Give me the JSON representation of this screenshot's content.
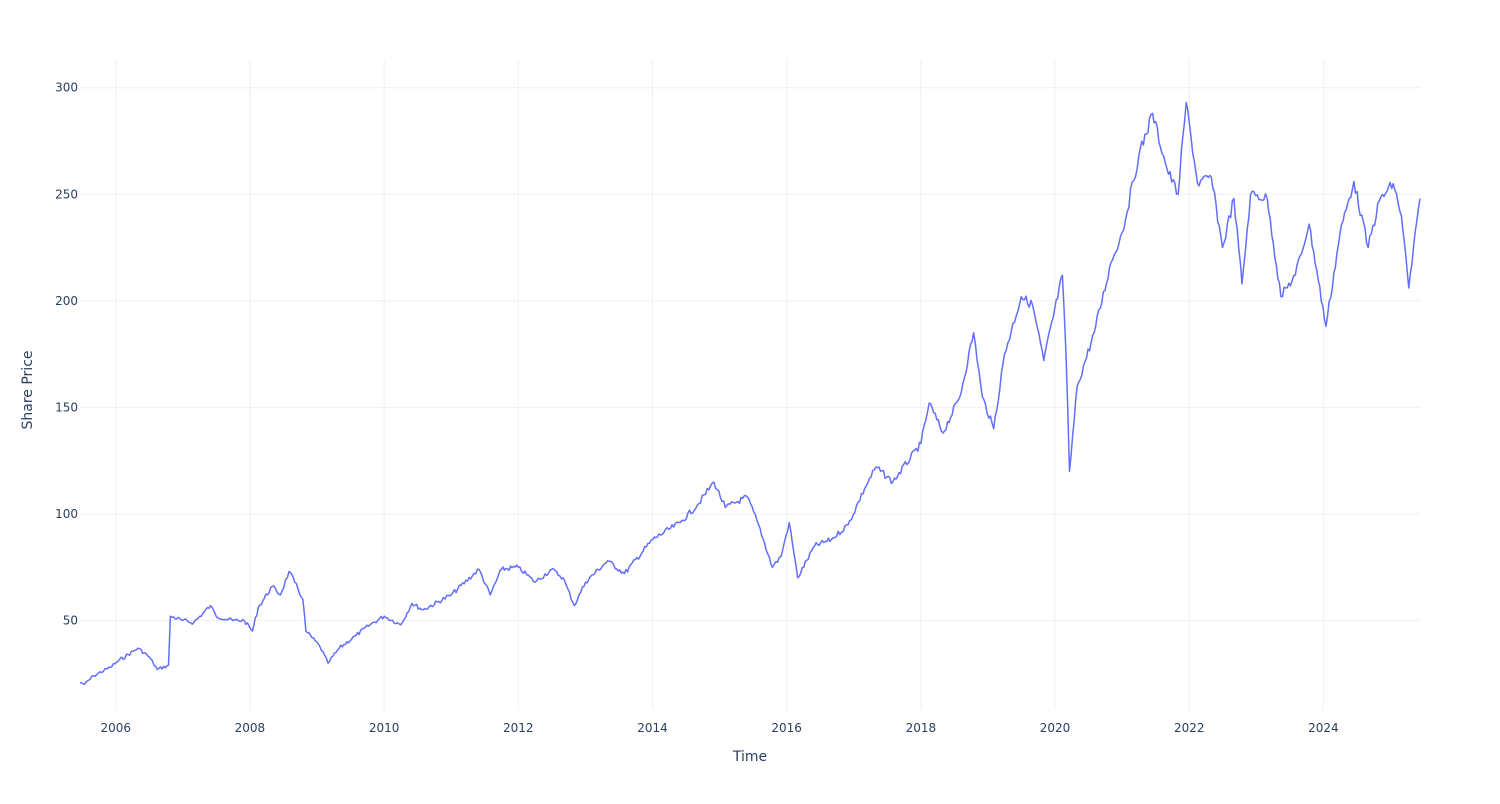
{
  "chart_data": {
    "type": "line",
    "title": "",
    "xlabel": "Time",
    "ylabel": "Share Price",
    "x_ticks": [
      "2006",
      "2008",
      "2010",
      "2012",
      "2014",
      "2016",
      "2018",
      "2020",
      "2022",
      "2024"
    ],
    "y_ticks": [
      50,
      100,
      150,
      200,
      250,
      300
    ],
    "xlim": [
      "2005-06-20",
      "2025-06-10"
    ],
    "ylim": [
      8,
      313
    ],
    "grid": true,
    "line_color": "#636efa",
    "series": [
      {
        "points": [
          [
            "2005-06-20",
            21
          ],
          [
            "2005-07-15",
            20
          ],
          [
            "2005-09-01",
            24
          ],
          [
            "2005-12-01",
            28
          ],
          [
            "2006-01-15",
            31
          ],
          [
            "2006-05-01",
            37
          ],
          [
            "2006-07-01",
            33
          ],
          [
            "2006-08-15",
            27
          ],
          [
            "2006-10-15",
            29
          ],
          [
            "2006-10-25",
            52
          ],
          [
            "2007-01-01",
            50
          ],
          [
            "2007-03-01",
            49
          ],
          [
            "2007-06-01",
            57
          ],
          [
            "2007-07-01",
            52
          ],
          [
            "2007-10-01",
            50
          ],
          [
            "2007-12-01",
            50
          ],
          [
            "2008-01-15",
            45
          ],
          [
            "2008-02-15",
            56
          ],
          [
            "2008-05-01",
            66
          ],
          [
            "2008-06-15",
            62
          ],
          [
            "2008-08-01",
            73
          ],
          [
            "2008-09-01",
            68
          ],
          [
            "2008-10-15",
            60
          ],
          [
            "2008-11-01",
            45
          ],
          [
            "2009-01-15",
            38
          ],
          [
            "2009-03-01",
            30
          ],
          [
            "2009-05-01",
            37
          ],
          [
            "2009-08-01",
            43
          ],
          [
            "2009-10-15",
            48
          ],
          [
            "2010-01-01",
            52
          ],
          [
            "2010-04-01",
            48
          ],
          [
            "2010-06-01",
            58
          ],
          [
            "2010-08-01",
            55
          ],
          [
            "2011-01-01",
            62
          ],
          [
            "2011-06-01",
            74
          ],
          [
            "2011-08-01",
            62
          ],
          [
            "2011-10-01",
            74
          ],
          [
            "2012-01-01",
            75
          ],
          [
            "2012-04-01",
            68
          ],
          [
            "2012-07-01",
            74
          ],
          [
            "2012-09-01",
            70
          ],
          [
            "2012-11-01",
            57
          ],
          [
            "2013-01-01",
            68
          ],
          [
            "2013-05-01",
            78
          ],
          [
            "2013-08-01",
            72
          ],
          [
            "2014-01-01",
            88
          ],
          [
            "2014-06-01",
            96
          ],
          [
            "2014-09-01",
            104
          ],
          [
            "2014-12-01",
            115
          ],
          [
            "2015-02-01",
            103
          ],
          [
            "2015-06-01",
            108
          ],
          [
            "2015-08-01",
            95
          ],
          [
            "2015-10-15",
            75
          ],
          [
            "2015-12-01",
            80
          ],
          [
            "2016-01-15",
            96
          ],
          [
            "2016-03-01",
            70
          ],
          [
            "2016-06-01",
            85
          ],
          [
            "2016-09-01",
            88
          ],
          [
            "2016-12-01",
            95
          ],
          [
            "2017-03-01",
            112
          ],
          [
            "2017-05-01",
            122
          ],
          [
            "2017-08-01",
            115
          ],
          [
            "2018-01-01",
            133
          ],
          [
            "2018-02-15",
            152
          ],
          [
            "2018-05-01",
            138
          ],
          [
            "2018-08-01",
            155
          ],
          [
            "2018-10-15",
            185
          ],
          [
            "2018-12-01",
            155
          ],
          [
            "2019-02-01",
            140
          ],
          [
            "2019-04-01",
            175
          ],
          [
            "2019-07-01",
            202
          ],
          [
            "2019-09-01",
            198
          ],
          [
            "2019-11-01",
            172
          ],
          [
            "2020-02-10",
            212
          ],
          [
            "2020-03-01",
            175
          ],
          [
            "2020-03-20",
            120
          ],
          [
            "2020-05-01",
            160
          ],
          [
            "2020-08-01",
            185
          ],
          [
            "2020-11-01",
            218
          ],
          [
            "2021-01-01",
            232
          ],
          [
            "2021-04-01",
            268
          ],
          [
            "2021-06-15",
            288
          ],
          [
            "2021-09-01",
            262
          ],
          [
            "2021-11-01",
            250
          ],
          [
            "2021-12-15",
            293
          ],
          [
            "2022-02-15",
            255
          ],
          [
            "2022-05-01",
            258
          ],
          [
            "2022-07-01",
            225
          ],
          [
            "2022-09-01",
            248
          ],
          [
            "2022-10-15",
            208
          ],
          [
            "2022-12-01",
            250
          ],
          [
            "2023-03-01",
            248
          ],
          [
            "2023-05-15",
            202
          ],
          [
            "2023-08-01",
            212
          ],
          [
            "2023-10-15",
            236
          ],
          [
            "2024-01-15",
            188
          ],
          [
            "2024-04-01",
            232
          ],
          [
            "2024-06-15",
            256
          ],
          [
            "2024-09-01",
            225
          ],
          [
            "2024-11-01",
            247
          ],
          [
            "2025-01-15",
            255
          ],
          [
            "2025-03-01",
            240
          ],
          [
            "2025-04-10",
            206
          ],
          [
            "2025-06-10",
            248
          ]
        ]
      }
    ]
  }
}
